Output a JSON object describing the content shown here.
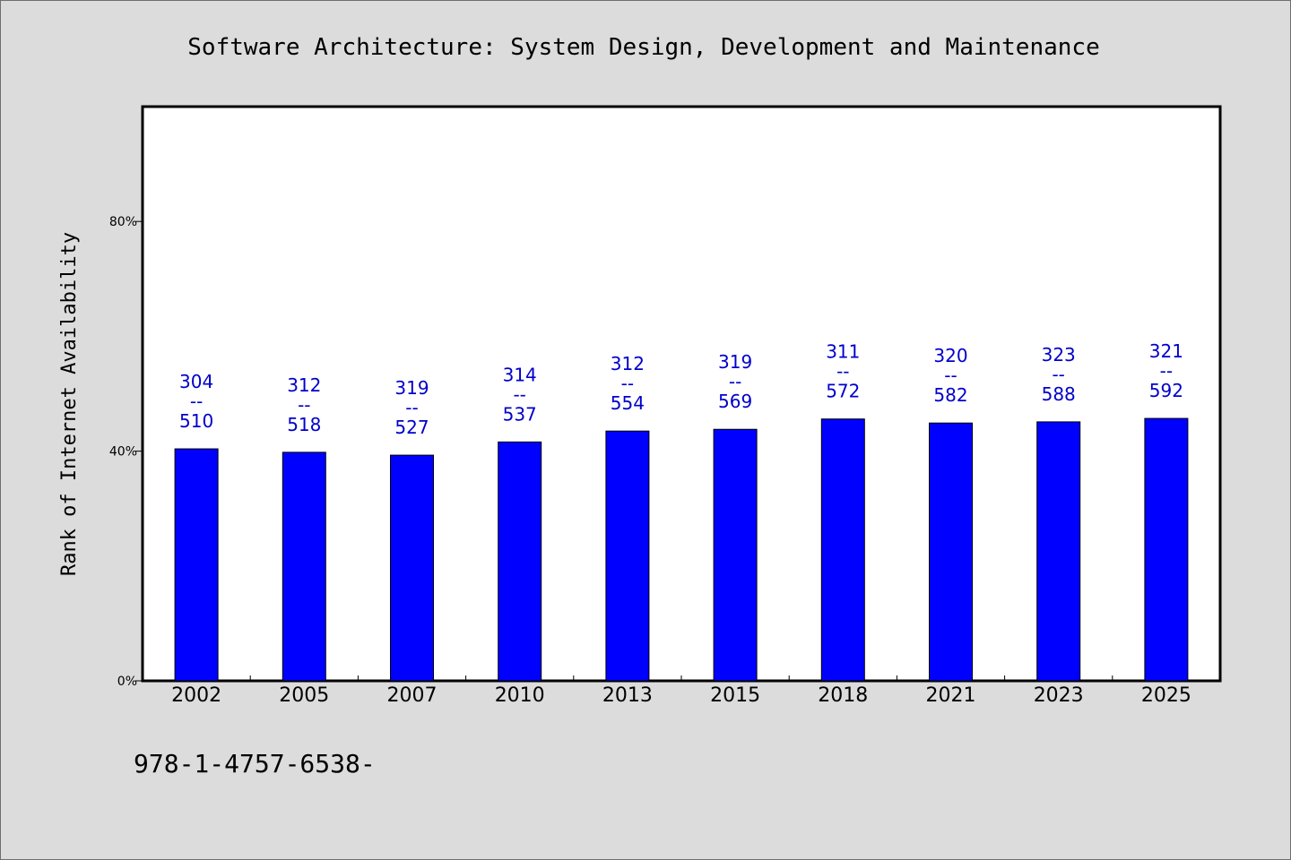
{
  "colors": {
    "bar": "#0000ff",
    "label": "#0000cc",
    "background": "#dcdcdc",
    "plot": "#ffffff"
  },
  "footer": {
    "isbn": "978-1-4757-6538-"
  },
  "chart_data": {
    "type": "bar",
    "title": "Software Architecture: System Design, Development and Maintenance",
    "xlabel": "",
    "ylabel": "Rank of Internet Availability",
    "ylim": [
      0,
      100
    ],
    "yticks": [
      0,
      40,
      80
    ],
    "ytick_labels": [
      "0%",
      "40%",
      "80%"
    ],
    "grid": false,
    "categories": [
      "2002",
      "2005",
      "2007",
      "2010",
      "2013",
      "2015",
      "2018",
      "2021",
      "2023",
      "2025"
    ],
    "values": [
      40.4,
      39.8,
      39.3,
      41.6,
      43.5,
      43.8,
      45.6,
      44.9,
      45.1,
      45.7
    ],
    "labels_top": [
      "304",
      "312",
      "319",
      "314",
      "312",
      "319",
      "311",
      "320",
      "323",
      "321"
    ],
    "labels_separator": "--",
    "labels_bottom": [
      "510",
      "518",
      "527",
      "537",
      "554",
      "569",
      "572",
      "582",
      "588",
      "592"
    ]
  }
}
